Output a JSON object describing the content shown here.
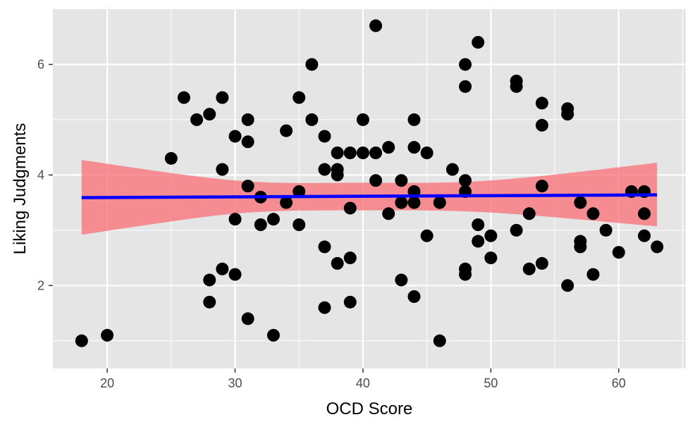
{
  "chart_data": {
    "type": "scatter",
    "xlabel": "OCD Score",
    "ylabel": "Liking Judgments",
    "xlim": [
      15.75,
      65.25
    ],
    "ylim": [
      0.5,
      7.0
    ],
    "x_ticks": [
      20,
      30,
      40,
      50,
      60
    ],
    "y_ticks": [
      2,
      4,
      6
    ],
    "grid": true,
    "points": [
      [
        18,
        1.0
      ],
      [
        20,
        1.1
      ],
      [
        25,
        4.3
      ],
      [
        26,
        5.4
      ],
      [
        27,
        5.0
      ],
      [
        28,
        5.1
      ],
      [
        28,
        2.1
      ],
      [
        28,
        1.7
      ],
      [
        29,
        5.4
      ],
      [
        29,
        4.1
      ],
      [
        29,
        2.3
      ],
      [
        30,
        4.7
      ],
      [
        30,
        3.2
      ],
      [
        30,
        2.2
      ],
      [
        31,
        5.0
      ],
      [
        31,
        4.6
      ],
      [
        31,
        3.8
      ],
      [
        31,
        1.4
      ],
      [
        32,
        3.6
      ],
      [
        32,
        3.1
      ],
      [
        33,
        3.2
      ],
      [
        33,
        1.1
      ],
      [
        34,
        4.8
      ],
      [
        34,
        3.5
      ],
      [
        35,
        5.4
      ],
      [
        35,
        3.7
      ],
      [
        35,
        3.1
      ],
      [
        36,
        6.0
      ],
      [
        36,
        5.0
      ],
      [
        37,
        4.7
      ],
      [
        37,
        4.1
      ],
      [
        37,
        2.7
      ],
      [
        37,
        1.6
      ],
      [
        38,
        4.4
      ],
      [
        38,
        4.1
      ],
      [
        38,
        4.0
      ],
      [
        38,
        2.4
      ],
      [
        39,
        4.4
      ],
      [
        39,
        3.4
      ],
      [
        39,
        2.5
      ],
      [
        39,
        1.7
      ],
      [
        40,
        5.0
      ],
      [
        40,
        4.4
      ],
      [
        41,
        6.7
      ],
      [
        41,
        4.4
      ],
      [
        41,
        3.9
      ],
      [
        42,
        4.5
      ],
      [
        42,
        3.3
      ],
      [
        43,
        3.9
      ],
      [
        43,
        3.5
      ],
      [
        43,
        2.1
      ],
      [
        44,
        5.0
      ],
      [
        44,
        4.5
      ],
      [
        44,
        3.7
      ],
      [
        44,
        3.5
      ],
      [
        44,
        1.8
      ],
      [
        45,
        4.4
      ],
      [
        45,
        2.9
      ],
      [
        46,
        3.5
      ],
      [
        46,
        1.0
      ],
      [
        47,
        4.1
      ],
      [
        48,
        6.0
      ],
      [
        48,
        5.6
      ],
      [
        48,
        3.9
      ],
      [
        48,
        3.7
      ],
      [
        48,
        2.3
      ],
      [
        48,
        2.2
      ],
      [
        49,
        6.4
      ],
      [
        49,
        3.1
      ],
      [
        49,
        2.8
      ],
      [
        50,
        2.9
      ],
      [
        50,
        2.5
      ],
      [
        52,
        5.7
      ],
      [
        52,
        5.6
      ],
      [
        52,
        3.0
      ],
      [
        53,
        3.3
      ],
      [
        53,
        2.3
      ],
      [
        54,
        5.3
      ],
      [
        54,
        4.9
      ],
      [
        54,
        3.8
      ],
      [
        54,
        2.4
      ],
      [
        56,
        5.2
      ],
      [
        56,
        5.1
      ],
      [
        56,
        2.0
      ],
      [
        57,
        3.5
      ],
      [
        57,
        2.8
      ],
      [
        57,
        2.7
      ],
      [
        58,
        3.3
      ],
      [
        58,
        2.2
      ],
      [
        59,
        3.0
      ],
      [
        60,
        2.6
      ],
      [
        61,
        3.7
      ],
      [
        62,
        3.7
      ],
      [
        62,
        3.3
      ],
      [
        62,
        2.9
      ],
      [
        63,
        2.7
      ]
    ],
    "fit_line": {
      "x": [
        18,
        63
      ],
      "y": [
        3.59,
        3.64
      ],
      "color": "#0000ff"
    },
    "confidence_band": {
      "x": [
        18,
        30,
        40,
        50,
        63
      ],
      "upper": [
        4.27,
        3.9,
        3.86,
        3.9,
        4.22
      ],
      "lower": [
        2.92,
        3.3,
        3.36,
        3.32,
        3.07
      ],
      "color": "#f8767d"
    },
    "colors": {
      "panel": "#e5e5e5",
      "grid": "#ffffff",
      "point": "#000000"
    }
  }
}
